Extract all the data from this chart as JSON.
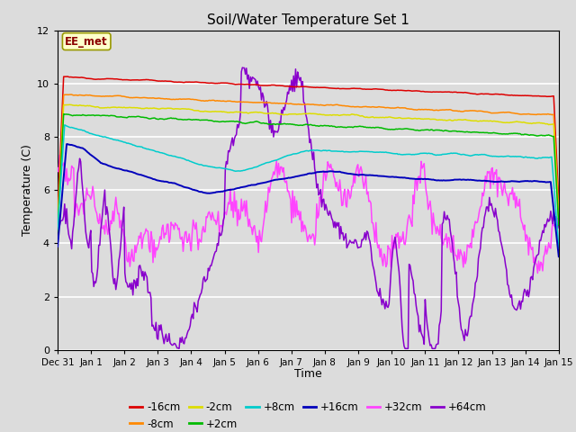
{
  "title": "Soil/Water Temperature Set 1",
  "xlabel": "Time",
  "ylabel": "Temperature (C)",
  "ylim": [
    0,
    12
  ],
  "xlim": [
    0,
    15
  ],
  "xtick_labels": [
    "Dec 31",
    "Jan 1",
    "Jan 2",
    "Jan 3",
    "Jan 4",
    "Jan 5",
    "Jan 6",
    "Jan 7",
    "Jan 8",
    "Jan 9",
    "Jan 10",
    "Jan 11",
    "Jan 12",
    "Jan 13",
    "Jan 14",
    "Jan 15"
  ],
  "ytick_values": [
    0,
    2,
    4,
    6,
    8,
    10,
    12
  ],
  "annotation_text": "EE_met",
  "annotation_box_color": "#ffffcc",
  "annotation_border_color": "#999900",
  "series_colors": {
    "-16cm": "#dd0000",
    "-8cm": "#ff8800",
    "-2cm": "#dddd00",
    "+2cm": "#00bb00",
    "+8cm": "#00cccc",
    "+16cm": "#0000bb",
    "+32cm": "#ff44ff",
    "+64cm": "#8800cc"
  },
  "background_color": "#dcdcdc",
  "plot_bg_color": "#dcdcdc",
  "grid_color": "#ffffff",
  "fig_width": 6.4,
  "fig_height": 4.8,
  "dpi": 100,
  "n_points": 500
}
